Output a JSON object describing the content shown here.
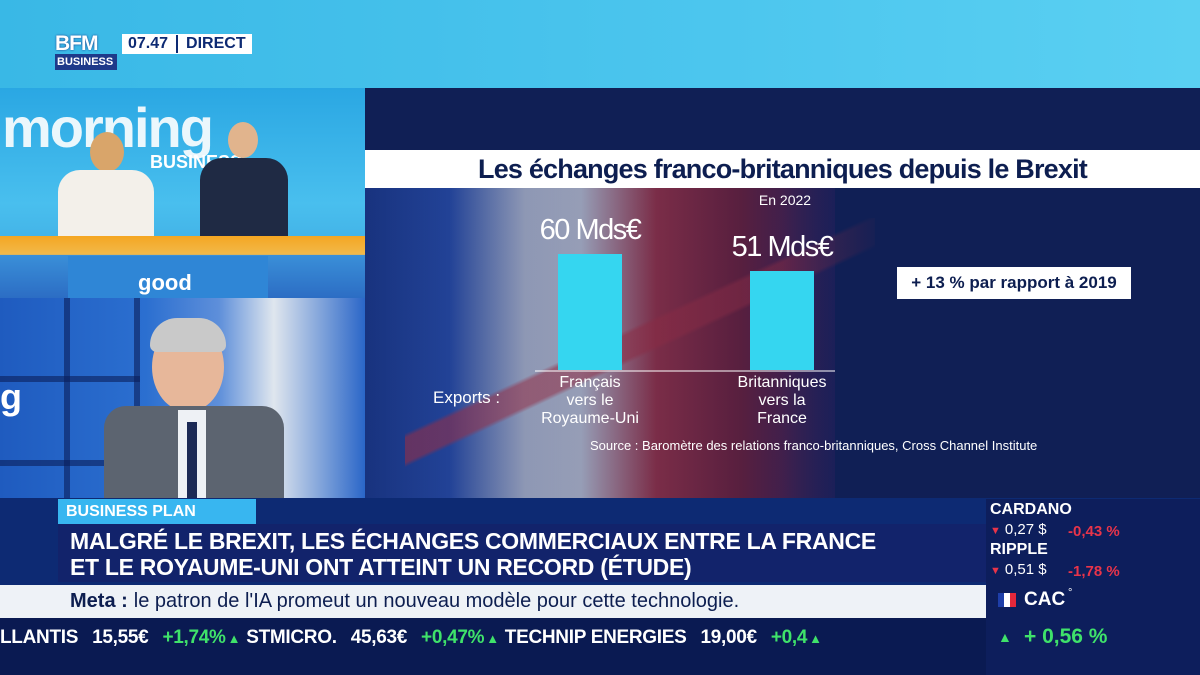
{
  "channel": {
    "logo_line1": "BFM",
    "logo_line2": "BUSINESS",
    "time": "07.47",
    "live_label": "DIRECT"
  },
  "studio": {
    "show_name": "morning",
    "show_sub": "BUSINESS",
    "desk_text": "good"
  },
  "guest_panel": {
    "letter": "g"
  },
  "infographic": {
    "title": "Les échanges franco-britanniques depuis le Brexit",
    "subtitle": "En 2022",
    "row_label": "Exports :",
    "growth_note": "+ 13 % par rapport à 2019",
    "source": "Source : Baromètre des relations franco-britanniques, Cross Channel Institute"
  },
  "chart_data": {
    "type": "bar",
    "title": "Les échanges franco-britanniques depuis le Brexit",
    "subtitle": "En 2022",
    "categories": [
      "Français vers le Royaume-Uni",
      "Britanniques vers la France"
    ],
    "category_lines": [
      [
        "Français",
        "vers le",
        "Royaume-Uni"
      ],
      [
        "Britanniques",
        "vers la",
        "France"
      ]
    ],
    "values": [
      60,
      51
    ],
    "value_labels": [
      "60 Mds€",
      "51 Mds€"
    ],
    "unit": "Mds€",
    "ylim": [
      0,
      60
    ],
    "color": "#35d6f0"
  },
  "lower_third": {
    "rubric": "BUSINESS PLAN",
    "headline_line1": "MALGRÉ LE BREXIT, LES ÉCHANGES COMMERCIAUX ENTRE LA FRANCE",
    "headline_line2": "ET LE ROYAUME-UNI ONT ATTEINT UN RECORD (ÉTUDE)",
    "news_bold": "Meta :",
    "news_text": "le patron de l'IA promeut un nouveau modèle pour cette technologie."
  },
  "ticker": [
    {
      "name": "LLANTIS",
      "price": "15,55€",
      "change": "+1,74%"
    },
    {
      "name": "STMICRO.",
      "price": "45,63€",
      "change": "+0,47%"
    },
    {
      "name": "TECHNIP ENERGIES",
      "price": "19,00€",
      "change": "+0,4"
    }
  ],
  "crypto": [
    {
      "name": "CARDANO",
      "price": "0,27 $",
      "change": "-0,43 %"
    },
    {
      "name": "RIPPLE",
      "price": "0,51 $",
      "change": "-1,78 %"
    }
  ],
  "index": {
    "name": "CAC",
    "marker": "°",
    "change": "+ 0,56 %"
  },
  "colors": {
    "accent": "#35d6f0",
    "brand_dark": "#12236b",
    "up": "#3fe26a",
    "down": "#e8344a"
  }
}
